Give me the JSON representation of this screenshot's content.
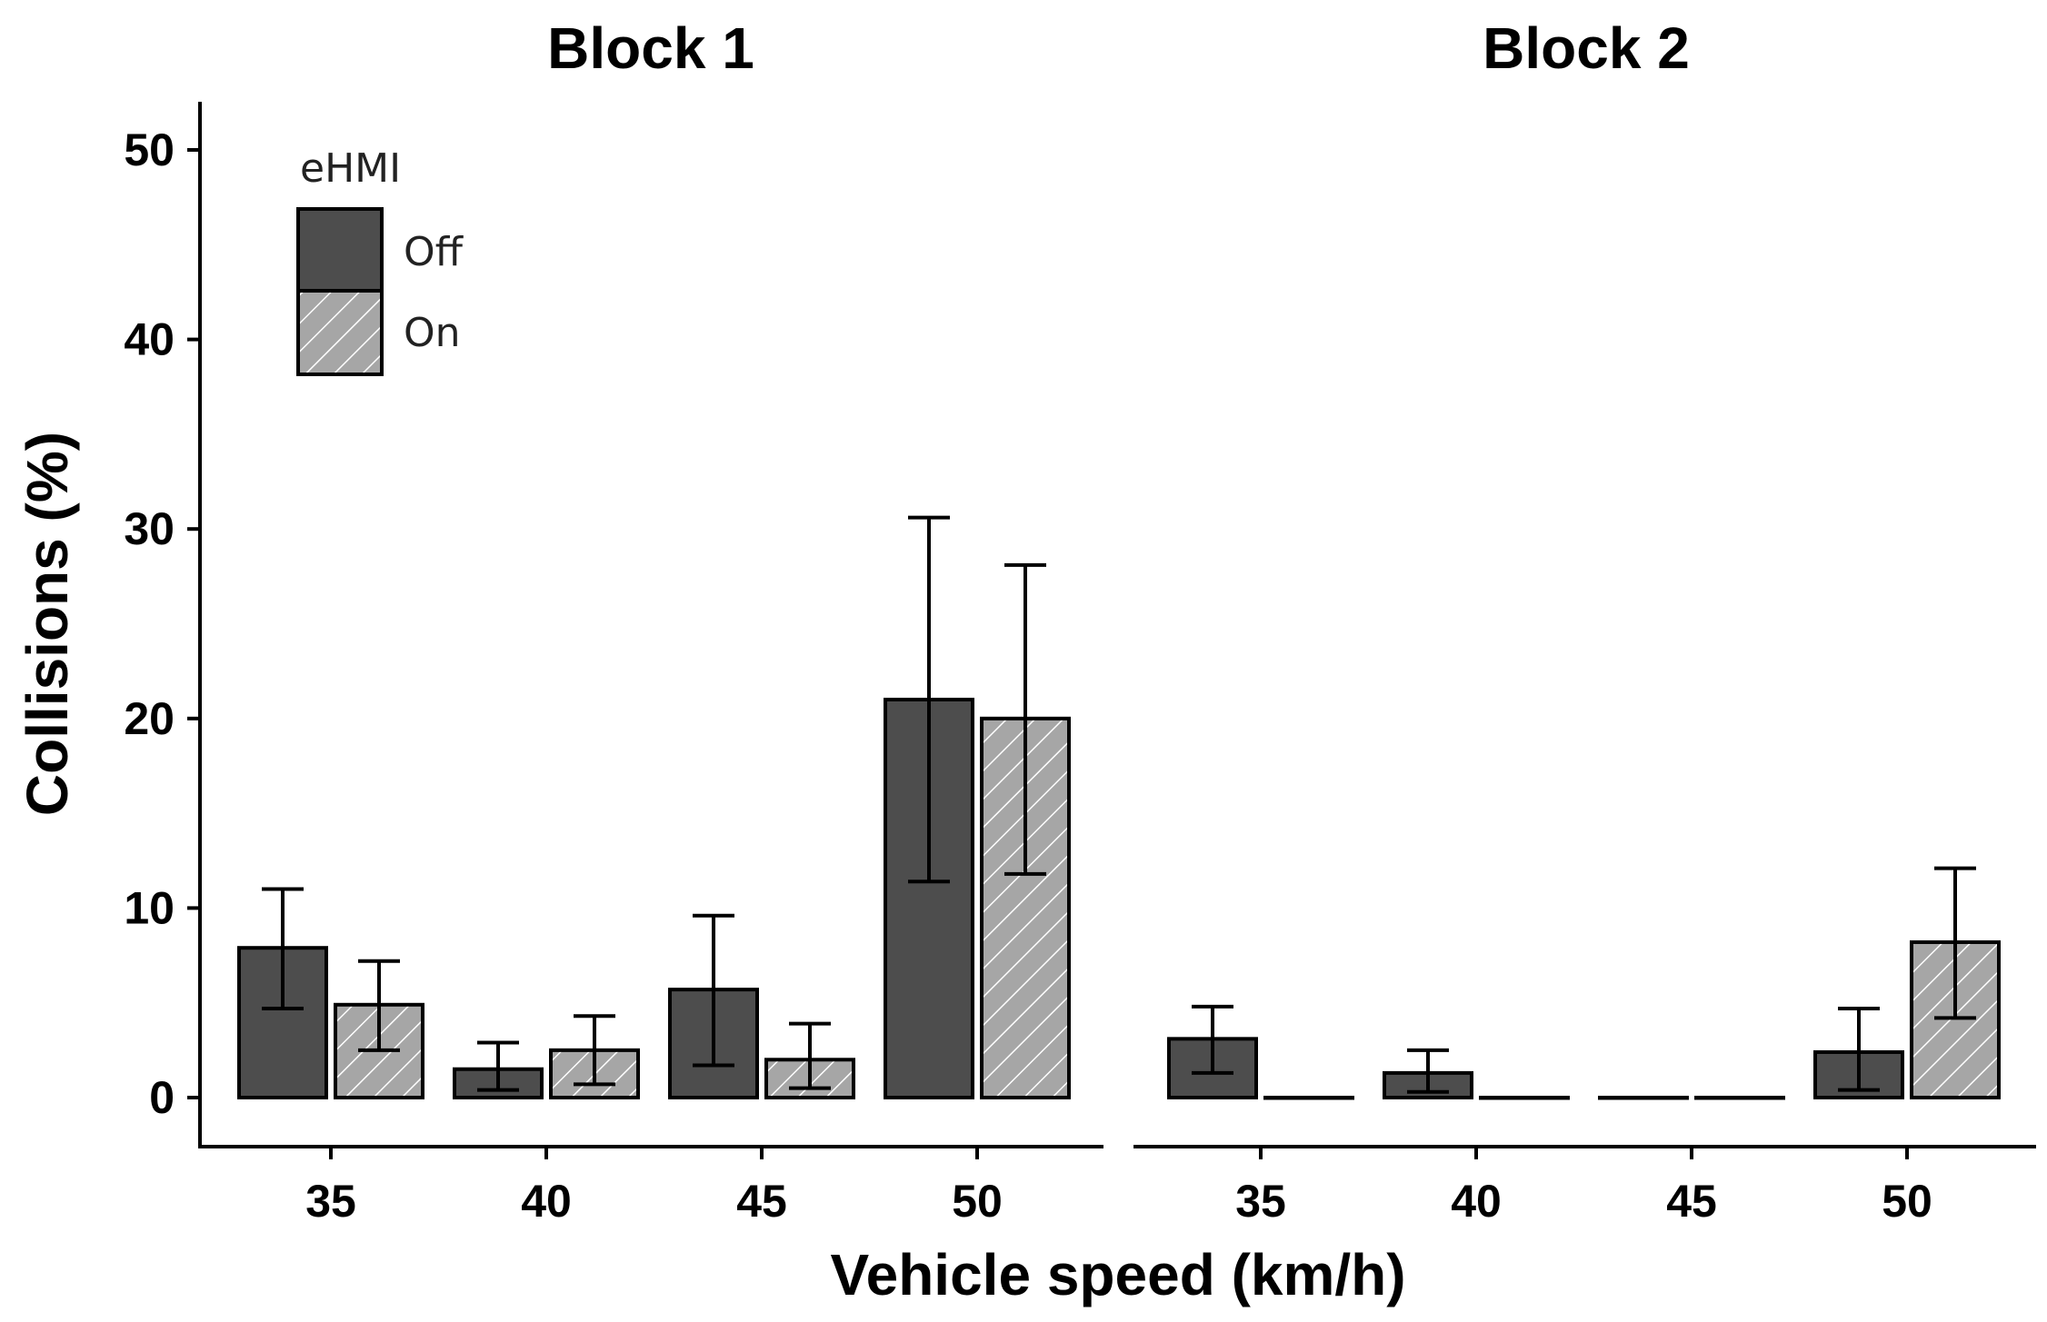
{
  "chart_data": {
    "type": "bar",
    "ylabel": "Collisions (%)",
    "xlabel": "Vehicle speed (km/h)",
    "ylim": [
      0,
      50
    ],
    "y_ticks": [
      "0",
      "10",
      "20",
      "30",
      "40",
      "50"
    ],
    "grid": false,
    "legend": {
      "title": "eHMI",
      "placement": "top-left",
      "entries": [
        "Off",
        "On"
      ]
    },
    "colors": {
      "off": "#4d4d4d",
      "on": "#a6a6a6",
      "hatch": "#ffffff"
    },
    "panels": [
      {
        "title": "Block 1",
        "categories": [
          "35",
          "40",
          "45",
          "50"
        ],
        "series": [
          {
            "name": "Off",
            "values": [
              7.9,
              1.5,
              5.7,
              21.0
            ],
            "err_low": [
              4.7,
              0.4,
              1.7,
              11.4
            ],
            "err_high": [
              11.0,
              2.9,
              9.6,
              30.6
            ]
          },
          {
            "name": "On",
            "values": [
              4.9,
              2.5,
              2.0,
              20.0
            ],
            "err_low": [
              2.5,
              0.7,
              0.5,
              11.8
            ],
            "err_high": [
              7.2,
              4.3,
              3.9,
              28.1
            ]
          }
        ]
      },
      {
        "title": "Block 2",
        "categories": [
          "35",
          "40",
          "45",
          "50"
        ],
        "series": [
          {
            "name": "Off",
            "values": [
              3.1,
              1.3,
              0.0,
              2.4
            ],
            "err_low": [
              1.3,
              0.3,
              0.0,
              0.4
            ],
            "err_high": [
              4.8,
              2.5,
              0.0,
              4.7
            ]
          },
          {
            "name": "On",
            "values": [
              0.0,
              0.0,
              0.0,
              8.2
            ],
            "err_low": [
              0.0,
              0.0,
              0.0,
              4.2
            ],
            "err_high": [
              0.0,
              0.0,
              0.0,
              12.1
            ]
          }
        ]
      }
    ]
  }
}
